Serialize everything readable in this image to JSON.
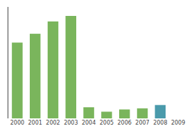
{
  "chart_data": {
    "type": "bar",
    "categories": [
      "2000",
      "2001",
      "2002",
      "2003",
      "2004",
      "2005",
      "2006",
      "2007",
      "2008",
      "2009"
    ],
    "values": [
      68,
      76,
      87,
      92,
      10,
      6,
      8,
      9,
      12,
      0
    ],
    "colors": [
      "#7ab55c",
      "#7ab55c",
      "#7ab55c",
      "#7ab55c",
      "#7ab55c",
      "#7ab55c",
      "#7ab55c",
      "#7ab55c",
      "#4a9aab",
      "#7ab55c"
    ],
    "ylim": [
      0,
      100
    ],
    "yticks": [],
    "grid": false,
    "tick_labels": "x"
  }
}
